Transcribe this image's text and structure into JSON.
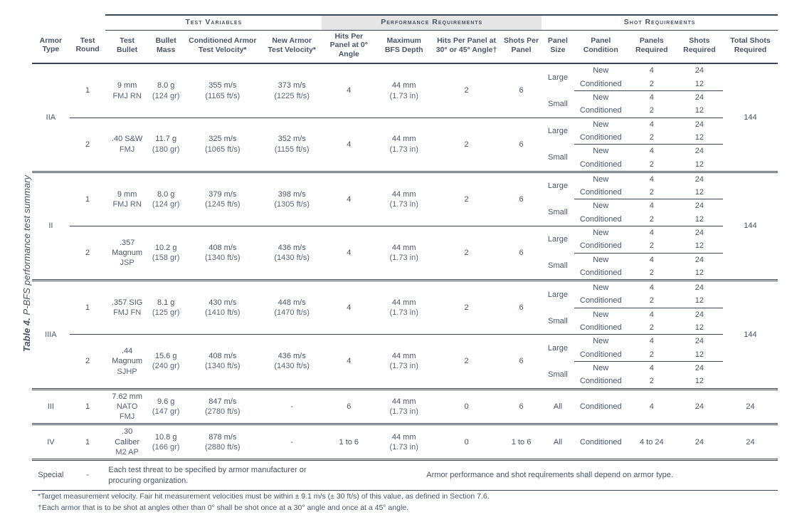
{
  "caption_bold": "Table 4.",
  "caption_rest": " P-BFS performance test summary",
  "section_headers": {
    "test_vars": "Test Variables",
    "perf_req": "Performance Requirements",
    "shot_req": "Shot Requirements"
  },
  "col": {
    "armor_type": "Armor Type",
    "test_round": "Test Round",
    "test_bullet": "Test Bullet",
    "bullet_mass": "Bullet Mass",
    "cond_vel": "Conditioned Armor Test Velocity*",
    "new_vel": "New Armor Test Velocity*",
    "hits_0": "Hits Per Panel at 0° Angle",
    "max_bfs": "Maximum BFS Depth",
    "hits_ang": "Hits Per Panel at 30° or 45° Angle†",
    "shots_panel": "Shots Per Panel",
    "panel_size": "Panel Size",
    "panel_cond": "Panel Condition",
    "panels_req": "Panels Required",
    "shots_req": "Shots Required",
    "total_shots": "Total Shots Required"
  },
  "armors": [
    {
      "type": "IIA",
      "total": "144",
      "rounds": [
        {
          "rn": "1",
          "bullet_1": "9 mm",
          "bullet_2": "FMJ RN",
          "mass_1": "8.0 g",
          "mass_2": "(124 gr)",
          "cv_1": "355 m/s",
          "cv_2": "(1165 ft/s)",
          "nv_1": "373 m/s",
          "nv_2": "(1225 ft/s)",
          "hits0": "4",
          "bfs_1": "44 mm",
          "bfs_2": "(1.73 in)",
          "hitsA": "2",
          "spp": "6"
        },
        {
          "rn": "2",
          "bullet_1": ".40 S&W",
          "bullet_2": "FMJ",
          "mass_1": "11.7 g",
          "mass_2": "(180 gr)",
          "cv_1": "325 m/s",
          "cv_2": "(1065 ft/s)",
          "nv_1": "352 m/s",
          "nv_2": "(1155 ft/s)",
          "hits0": "4",
          "bfs_1": "44 mm",
          "bfs_2": "(1.73 in)",
          "hitsA": "2",
          "spp": "6"
        }
      ]
    },
    {
      "type": "II",
      "total": "144",
      "rounds": [
        {
          "rn": "1",
          "bullet_1": "9 mm",
          "bullet_2": "FMJ RN",
          "mass_1": "8.0 g",
          "mass_2": "(124 gr)",
          "cv_1": "379 m/s",
          "cv_2": "(1245 ft/s)",
          "nv_1": "398 m/s",
          "nv_2": "(1305 ft/s)",
          "hits0": "4",
          "bfs_1": "44 mm",
          "bfs_2": "(1.73 in)",
          "hitsA": "2",
          "spp": "6"
        },
        {
          "rn": "2",
          "bullet_1": ".357 Magnum",
          "bullet_2": "JSP",
          "mass_1": "10.2 g",
          "mass_2": "(158 gr)",
          "cv_1": "408 m/s",
          "cv_2": "(1340 ft/s)",
          "nv_1": "436 m/s",
          "nv_2": "(1430 ft/s)",
          "hits0": "4",
          "bfs_1": "44 mm",
          "bfs_2": "(1.73 in)",
          "hitsA": "2",
          "spp": "6"
        }
      ]
    },
    {
      "type": "IIIA",
      "total": "144",
      "rounds": [
        {
          "rn": "1",
          "bullet_1": ".357 SIG",
          "bullet_2": "FMJ FN",
          "mass_1": "8.1 g",
          "mass_2": "(125 gr)",
          "cv_1": "430 m/s",
          "cv_2": "(1410 ft/s)",
          "nv_1": "448 m/s",
          "nv_2": "(1470 ft/s)",
          "hits0": "4",
          "bfs_1": "44 mm",
          "bfs_2": "(1.73 in)",
          "hitsA": "2",
          "spp": "6"
        },
        {
          "rn": "2",
          "bullet_1": ".44 Magnum",
          "bullet_2": "SJHP",
          "mass_1": "15.6 g",
          "mass_2": "(240 gr)",
          "cv_1": "408 m/s",
          "cv_2": "(1340 ft/s)",
          "nv_1": "436 m/s",
          "nv_2": "(1430 ft/s)",
          "hits0": "4",
          "bfs_1": "44 mm",
          "bfs_2": "(1.73 in)",
          "hitsA": "2",
          "spp": "6"
        }
      ]
    }
  ],
  "panel_sets": [
    {
      "size": "Large",
      "cond1": "New",
      "p1": "4",
      "s1": "24",
      "cond2": "Conditioned",
      "p2": "2",
      "s2": "12"
    },
    {
      "size": "Small",
      "cond1": "New",
      "p1": "4",
      "s1": "24",
      "cond2": "Conditioned",
      "p2": "2",
      "s2": "12"
    }
  ],
  "simple_rows": [
    {
      "type": "III",
      "rn": "1",
      "bullet_1": "7.62 mm",
      "bullet_2": "NATO FMJ",
      "mass_1": "9.6 g",
      "mass_2": "(147 gr)",
      "cv_1": "847 m/s",
      "cv_2": "(2780 ft/s)",
      "nv": "-",
      "hits0": "6",
      "bfs_1": "44 mm",
      "bfs_2": "(1.73 in)",
      "hitsA": "0",
      "spp": "6",
      "psize": "All",
      "pcond": "Conditioned",
      "preq": "4",
      "sreq": "24",
      "total": "24"
    },
    {
      "type": "IV",
      "rn": "1",
      "bullet_1": ".30 Caliber",
      "bullet_2": "M2 AP",
      "mass_1": "10.8 g",
      "mass_2": "(166 gr)",
      "cv_1": "878 m/s",
      "cv_2": "(2880 ft/s)",
      "nv": "-",
      "hits0": "1 to 6",
      "bfs_1": "44 mm",
      "bfs_2": "(1.73 in)",
      "hitsA": "0",
      "spp": "1 to 6",
      "psize": "All",
      "pcond": "Conditioned",
      "preq": "4 to 24",
      "sreq": "24",
      "total": "24"
    }
  ],
  "special": {
    "label": "Special",
    "dash": "-",
    "text": "Each test threat to be specified by armor manufacturer or procuring organization.",
    "perf": "Armor performance and shot requirements shall depend on armor type."
  },
  "footnotes": {
    "f1": "*Target measurement velocity. Fair hit measurement velocities must be within ± 9.1 m/s (± 30 ft/s) of this value, as defined in Section 7.6.",
    "f2": "†Each armor that is to be shot at angles other than 0° shall be shot once at a 30° angle and once at a 45° angle."
  }
}
